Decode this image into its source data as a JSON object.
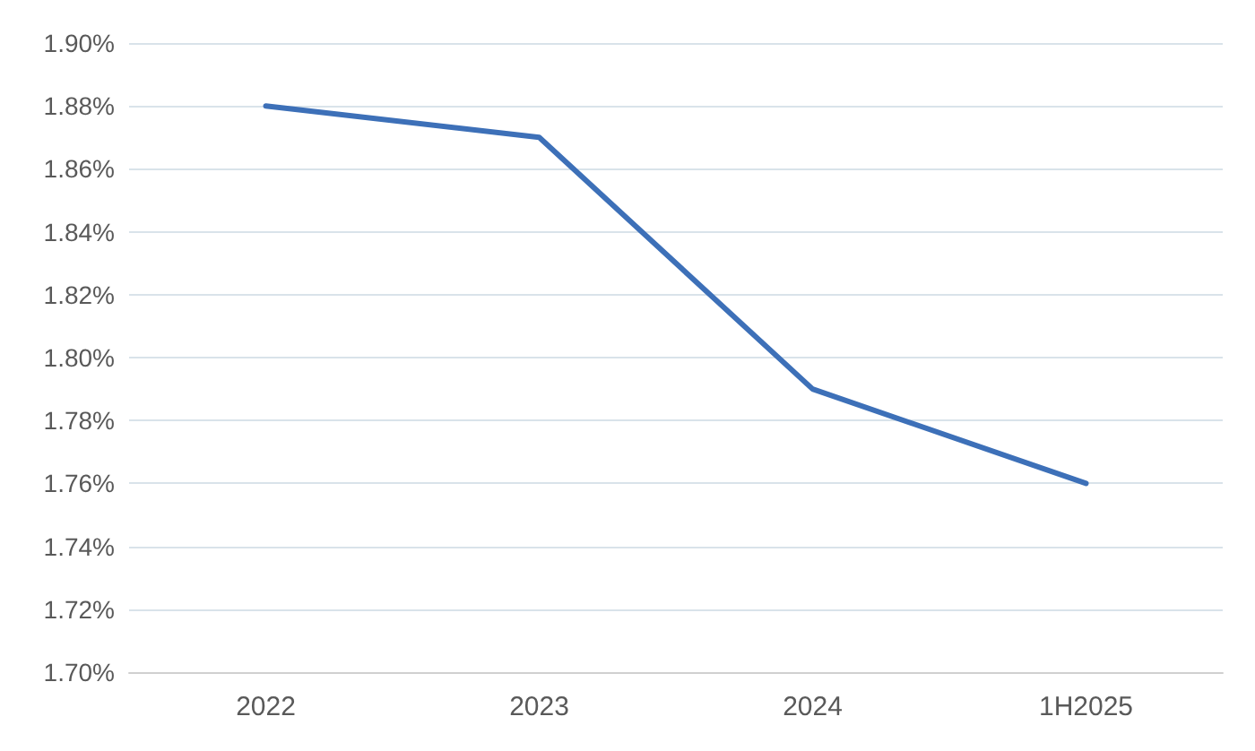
{
  "chart_data": {
    "type": "line",
    "categories": [
      "2022",
      "2023",
      "2024",
      "1H2025"
    ],
    "series": [
      {
        "color": "#3d70b8",
        "values": [
          1.88,
          1.87,
          1.79,
          1.76
        ]
      }
    ],
    "ylim": [
      1.7,
      1.9
    ],
    "yticks": [
      {
        "value": 1.7,
        "label": "1.70%"
      },
      {
        "value": 1.72,
        "label": "1.72%"
      },
      {
        "value": 1.74,
        "label": "1.74%"
      },
      {
        "value": 1.76,
        "label": "1.76%"
      },
      {
        "value": 1.78,
        "label": "1.78%"
      },
      {
        "value": 1.8,
        "label": "1.80%"
      },
      {
        "value": 1.82,
        "label": "1.82%"
      },
      {
        "value": 1.84,
        "label": "1.84%"
      },
      {
        "value": 1.86,
        "label": "1.86%"
      },
      {
        "value": 1.88,
        "label": "1.88%"
      },
      {
        "value": 1.9,
        "label": "1.90%"
      }
    ],
    "grid": "y",
    "marker": "none",
    "line_style": "solid"
  }
}
